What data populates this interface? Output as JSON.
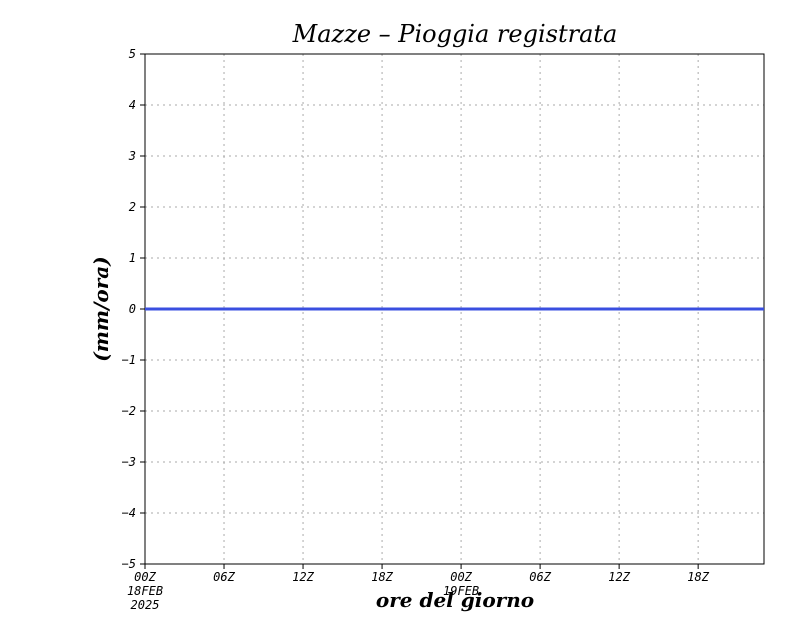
{
  "chart_data": {
    "type": "line",
    "title": "Mazze – Pioggia registrata",
    "xlabel": "ore del giorno",
    "ylabel": "(mm/ora)",
    "ylim": [
      -5,
      5
    ],
    "yticks": [
      "−5",
      "−4",
      "−3",
      "−2",
      "−1",
      "0",
      "1",
      "2",
      "3",
      "4",
      "5"
    ],
    "ytick_values": [
      -5,
      -4,
      -3,
      -2,
      -1,
      0,
      1,
      2,
      3,
      4,
      5
    ],
    "xlim_hours": [
      0,
      47
    ],
    "xticks": [
      {
        "hour": 0,
        "label": "00Z",
        "sub": [
          "18FEB",
          "2025"
        ]
      },
      {
        "hour": 6,
        "label": "06Z",
        "sub": []
      },
      {
        "hour": 12,
        "label": "12Z",
        "sub": []
      },
      {
        "hour": 18,
        "label": "18Z",
        "sub": []
      },
      {
        "hour": 24,
        "label": "00Z",
        "sub": [
          "19FEB"
        ]
      },
      {
        "hour": 30,
        "label": "06Z",
        "sub": []
      },
      {
        "hour": 36,
        "label": "12Z",
        "sub": []
      },
      {
        "hour": 42,
        "label": "18Z",
        "sub": []
      }
    ],
    "grid": true,
    "series": [
      {
        "color": "#3a4fe0",
        "x": [
          0,
          47
        ],
        "values": [
          0,
          0
        ]
      }
    ]
  }
}
